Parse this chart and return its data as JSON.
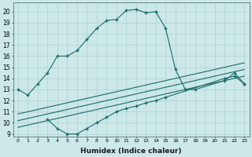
{
  "xlabel": "Humidex (Indice chaleur)",
  "background_color": "#cce8e8",
  "grid_color": "#a8cccc",
  "line_color": "#1a6b6b",
  "xlim": [
    -0.5,
    23.5
  ],
  "ylim": [
    8.8,
    20.8
  ],
  "yticks": [
    9,
    10,
    11,
    12,
    13,
    14,
    15,
    16,
    17,
    18,
    19,
    20
  ],
  "xticks": [
    0,
    1,
    2,
    3,
    4,
    5,
    6,
    7,
    8,
    9,
    10,
    11,
    12,
    13,
    14,
    15,
    16,
    17,
    18,
    19,
    20,
    21,
    22,
    23
  ],
  "main_x": [
    0,
    1,
    2,
    3,
    4,
    5,
    6,
    7,
    8,
    9,
    10,
    11,
    12,
    13,
    14,
    15,
    16,
    17,
    18,
    21,
    22,
    23
  ],
  "main_y": [
    13.0,
    12.5,
    13.5,
    14.5,
    16.0,
    16.0,
    16.5,
    17.5,
    18.5,
    19.2,
    19.3,
    20.1,
    20.2,
    19.9,
    20.0,
    18.5,
    14.8,
    13.0,
    13.0,
    13.8,
    14.5,
    13.5
  ],
  "lower_x": [
    3,
    4,
    5,
    6,
    7,
    8,
    9,
    10,
    11,
    12,
    13,
    14,
    15,
    21,
    22,
    23
  ],
  "lower_y": [
    10.3,
    9.5,
    9.0,
    9.0,
    9.5,
    10.0,
    10.5,
    11.0,
    11.3,
    11.5,
    11.8,
    12.0,
    12.3,
    14.0,
    14.2,
    13.5
  ],
  "line1_x": [
    0,
    1,
    2,
    3,
    4,
    5,
    6,
    7,
    8,
    9,
    10,
    11,
    12,
    13,
    14,
    15,
    16,
    17,
    18,
    19,
    20,
    21,
    22,
    23
  ],
  "line1_y": [
    10.8,
    11.0,
    11.2,
    11.4,
    11.6,
    11.8,
    12.0,
    12.2,
    12.4,
    12.6,
    12.8,
    13.0,
    13.2,
    13.4,
    13.6,
    13.8,
    14.0,
    14.2,
    14.4,
    14.6,
    14.8,
    15.0,
    15.2,
    15.4
  ],
  "line2_x": [
    0,
    1,
    2,
    3,
    4,
    5,
    6,
    7,
    8,
    9,
    10,
    11,
    12,
    13,
    14,
    15,
    16,
    17,
    18,
    19,
    20,
    21,
    22,
    23
  ],
  "line2_y": [
    10.2,
    10.4,
    10.6,
    10.8,
    11.0,
    11.2,
    11.4,
    11.6,
    11.8,
    12.0,
    12.2,
    12.4,
    12.6,
    12.8,
    13.0,
    13.2,
    13.4,
    13.6,
    13.8,
    14.0,
    14.2,
    14.4,
    14.6,
    14.8
  ],
  "line3_x": [
    0,
    1,
    2,
    3,
    4,
    5,
    6,
    7,
    8,
    9,
    10,
    11,
    12,
    13,
    14,
    15,
    16,
    17,
    18,
    19,
    20,
    21,
    22,
    23
  ],
  "line3_y": [
    9.6,
    9.8,
    10.0,
    10.2,
    10.4,
    10.6,
    10.8,
    11.0,
    11.2,
    11.4,
    11.6,
    11.8,
    12.0,
    12.2,
    12.4,
    12.6,
    12.8,
    13.0,
    13.2,
    13.4,
    13.6,
    13.8,
    14.0,
    14.2
  ]
}
